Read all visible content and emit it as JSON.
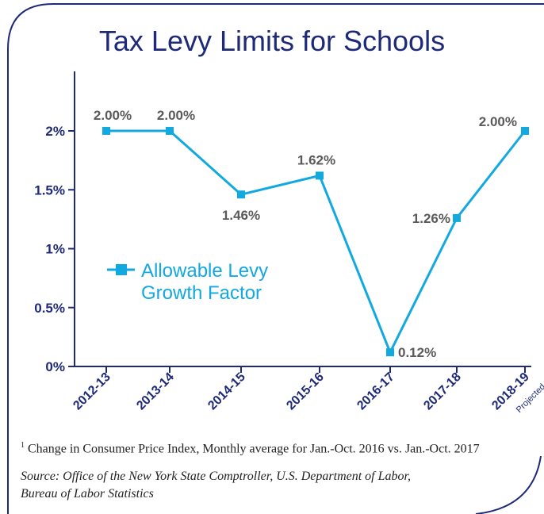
{
  "title": "Tax Levy Limits for Schools",
  "legend_label_line1": "Allowable Levy",
  "legend_label_line2": "Growth Factor",
  "projected_note": "Projected",
  "footnote_marker": "1",
  "footnote_text": "Change in Consumer Price Index, Monthly average for Jan.-Oct. 2016 vs. Jan.-Oct. 2017",
  "source_line1": "Source: Office of the New York State Comptroller, U.S. Department of Labor,",
  "source_line2": "Bureau of Labor Statistics",
  "colors": {
    "series": "#12a8e0",
    "marker": "#12a8e0",
    "axis": "#1e2a78",
    "frame": "#1e2a78",
    "label": "#5a5a5a"
  },
  "chart_data": {
    "type": "line",
    "title": "Tax Levy Limits for Schools",
    "xlabel": "",
    "ylabel": "",
    "categories": [
      "2012-13",
      "2013-14",
      "2014-15",
      "2015-16",
      "2016-17",
      "2017-18",
      "2018-19"
    ],
    "series": [
      {
        "name": "Allowable Levy Growth Factor",
        "values": [
          2.0,
          2.0,
          1.46,
          1.62,
          0.12,
          1.26,
          2.0
        ]
      }
    ],
    "data_labels": [
      "2.00%",
      "2.00%",
      "1.46%",
      "1.62%",
      "0.12%",
      "1.26%",
      "2.00%"
    ],
    "yticks": [
      0,
      0.5,
      1,
      1.5,
      2
    ],
    "ytick_labels": [
      "0%",
      "0.5%",
      "1%",
      "1.5%",
      "2%"
    ],
    "ylim": [
      0,
      2.5
    ],
    "grid": false,
    "legend_position": "left-middle"
  }
}
